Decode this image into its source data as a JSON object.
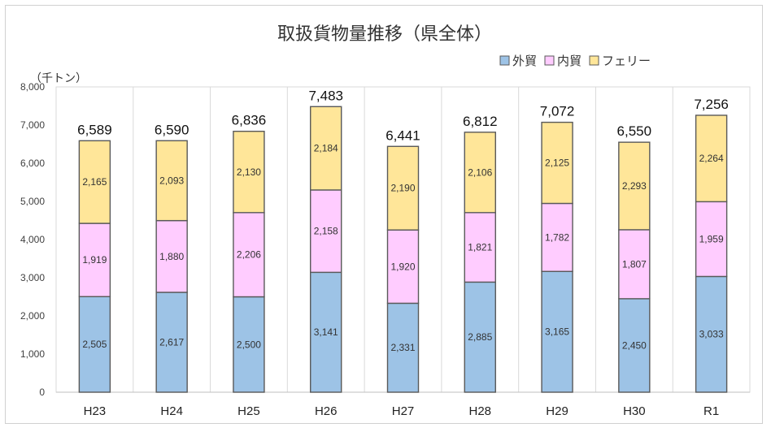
{
  "chart_data": {
    "type": "bar",
    "stacked": true,
    "title": "取扱貨物量推移（県全体）",
    "unit_label": "（千トン）",
    "categories": [
      "H23",
      "H24",
      "H25",
      "H26",
      "H27",
      "H28",
      "H29",
      "H30",
      "R1"
    ],
    "series": [
      {
        "name": "外貿",
        "color": "#9dc3e6",
        "values": [
          2505,
          2617,
          2500,
          3141,
          2331,
          2885,
          3165,
          2450,
          3033
        ]
      },
      {
        "name": "内貿",
        "color": "#ffccff",
        "values": [
          1919,
          1880,
          2206,
          2158,
          1920,
          1821,
          1782,
          1807,
          1959
        ]
      },
      {
        "name": "フェリー",
        "color": "#ffe699",
        "values": [
          2165,
          2093,
          2130,
          2184,
          2190,
          2106,
          2125,
          2293,
          2264
        ]
      }
    ],
    "totals": [
      6589,
      6590,
      6836,
      7483,
      6441,
      6812,
      7072,
      6550,
      7256
    ],
    "ylim": [
      0,
      8000
    ],
    "yticks": [
      0,
      1000,
      2000,
      3000,
      4000,
      5000,
      6000,
      7000,
      8000
    ],
    "legend_position": "top-right",
    "grid": "vertical-category-separators"
  }
}
